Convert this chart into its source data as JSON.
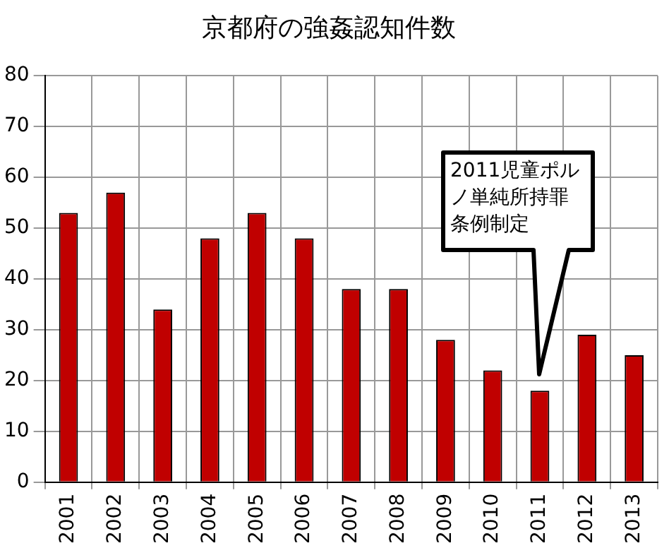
{
  "chart_data": {
    "type": "bar",
    "title": "京都府の強姦認知件数",
    "categories": [
      "2001",
      "2002",
      "2003",
      "2004",
      "2005",
      "2006",
      "2007",
      "2008",
      "2009",
      "2010",
      "2011",
      "2012",
      "2013"
    ],
    "values": [
      53,
      57,
      34,
      48,
      53,
      48,
      38,
      38,
      28,
      22,
      18,
      29,
      25
    ],
    "color": "#c00000",
    "ylim": [
      0,
      80
    ],
    "yticks": [
      0,
      10,
      20,
      30,
      40,
      50,
      60,
      70,
      80
    ],
    "grid": true,
    "legend": false,
    "annotations": [
      "2011児童ポルノ単純所持罪条例制定"
    ]
  }
}
